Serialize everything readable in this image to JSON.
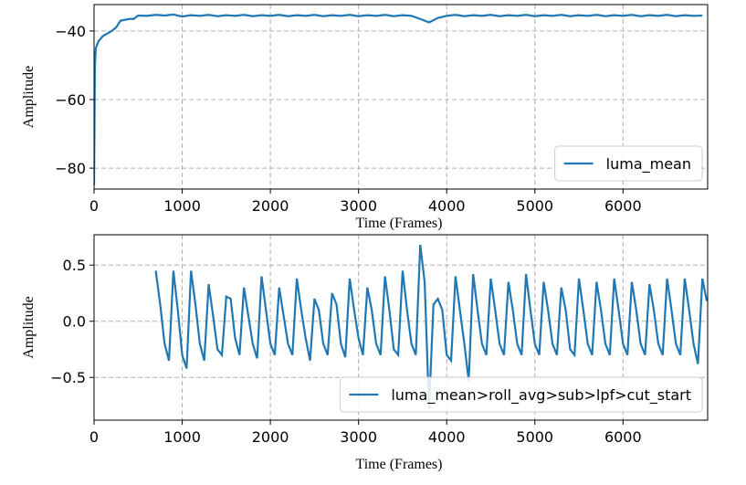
{
  "chart_data": [
    {
      "type": "line",
      "xlabel": "Time (Frames)",
      "ylabel": "Amplitude",
      "legend": "lower right",
      "grid": true,
      "x": [
        0,
        10,
        20,
        50,
        100,
        200,
        250,
        300,
        400,
        450,
        500,
        600,
        700,
        800,
        900,
        1000,
        1100,
        1200,
        1300,
        1400,
        1500,
        1600,
        1700,
        1800,
        1900,
        2000,
        2100,
        2200,
        2300,
        2400,
        2500,
        2600,
        2700,
        2800,
        2900,
        3000,
        3100,
        3200,
        3300,
        3400,
        3500,
        3600,
        3700,
        3800,
        3900,
        4000,
        4100,
        4200,
        4300,
        4400,
        4500,
        4600,
        4700,
        4800,
        4900,
        5000,
        5100,
        5200,
        5300,
        5400,
        5500,
        5600,
        5700,
        5800,
        5900,
        6000,
        6100,
        6200,
        6300,
        6400,
        6500,
        6600,
        6700,
        6800,
        6900
      ],
      "series": [
        {
          "name": "luma_mean",
          "color": "#1f77b4",
          "values": [
            -85,
            -50,
            -45,
            -43,
            -41.5,
            -40,
            -39,
            -37,
            -36.5,
            -36.5,
            -35.5,
            -35.6,
            -35.3,
            -35.5,
            -35.2,
            -35.8,
            -35.4,
            -35.6,
            -35.3,
            -35.7,
            -35.4,
            -35.6,
            -35.3,
            -35.7,
            -35.4,
            -35.6,
            -35.3,
            -35.7,
            -35.4,
            -35.6,
            -35.3,
            -35.7,
            -35.4,
            -35.6,
            -35.3,
            -35.7,
            -35.4,
            -35.6,
            -35.3,
            -35.7,
            -35.4,
            -35.6,
            -36.5,
            -37.5,
            -36.2,
            -35.6,
            -35.3,
            -35.7,
            -35.4,
            -35.6,
            -35.3,
            -35.7,
            -35.4,
            -35.6,
            -35.3,
            -35.7,
            -35.4,
            -35.6,
            -35.3,
            -35.7,
            -35.4,
            -35.6,
            -35.3,
            -35.7,
            -35.4,
            -35.6,
            -35.3,
            -35.7,
            -35.4,
            -35.6,
            -35.3,
            -35.7,
            -35.4,
            -35.6,
            -35.5
          ]
        }
      ],
      "xlim": [
        0,
        6960
      ],
      "xticks": [
        0,
        1000,
        2000,
        3000,
        4000,
        5000,
        6000
      ],
      "ylim": [
        -86.1,
        -32.3
      ],
      "yticks": [
        {
          "value": -40,
          "label": "−40"
        },
        {
          "value": -60,
          "label": "−60"
        },
        {
          "value": -80,
          "label": "−80"
        }
      ]
    },
    {
      "type": "line",
      "xlabel": "Time (Frames)",
      "ylabel": "Amplitude",
      "legend": "lower right",
      "grid": true,
      "x": [
        700,
        750,
        800,
        850,
        900,
        950,
        1000,
        1050,
        1100,
        1150,
        1200,
        1250,
        1300,
        1350,
        1400,
        1450,
        1500,
        1550,
        1600,
        1650,
        1700,
        1750,
        1800,
        1850,
        1900,
        1950,
        2000,
        2050,
        2100,
        2150,
        2200,
        2250,
        2300,
        2350,
        2400,
        2450,
        2500,
        2550,
        2600,
        2650,
        2700,
        2750,
        2800,
        2850,
        2900,
        2950,
        3000,
        3050,
        3100,
        3150,
        3200,
        3250,
        3300,
        3350,
        3400,
        3450,
        3500,
        3550,
        3600,
        3650,
        3700,
        3750,
        3800,
        3850,
        3900,
        3950,
        4000,
        4050,
        4100,
        4150,
        4200,
        4250,
        4300,
        4350,
        4400,
        4450,
        4500,
        4550,
        4600,
        4650,
        4700,
        4750,
        4800,
        4850,
        4900,
        4950,
        5000,
        5050,
        5100,
        5150,
        5200,
        5250,
        5300,
        5350,
        5400,
        5450,
        5500,
        5550,
        5600,
        5650,
        5700,
        5750,
        5800,
        5850,
        5900,
        5950,
        6000,
        6050,
        6100,
        6150,
        6200,
        6250,
        6300,
        6350,
        6400,
        6450,
        6500,
        6550,
        6600,
        6650,
        6700,
        6750,
        6800,
        6850,
        6900,
        6950
      ],
      "series": [
        {
          "name": "luma_mean>roll_avg>sub>lpf>cut_start",
          "color": "#1f77b4",
          "values": [
            0.45,
            0.15,
            -0.2,
            -0.35,
            0.45,
            0.1,
            -0.3,
            -0.42,
            0.45,
            0.15,
            -0.2,
            -0.35,
            0.33,
            0.05,
            -0.25,
            -0.3,
            0.22,
            0.2,
            -0.15,
            -0.3,
            0.3,
            0.05,
            -0.2,
            -0.33,
            0.4,
            0.1,
            -0.2,
            -0.3,
            0.3,
            0.05,
            -0.2,
            -0.3,
            0.38,
            0.1,
            -0.15,
            -0.35,
            0.2,
            0.1,
            -0.2,
            -0.3,
            0.25,
            0.15,
            -0.2,
            -0.32,
            0.38,
            0.1,
            -0.15,
            -0.3,
            0.3,
            0.1,
            -0.2,
            -0.3,
            0.4,
            0.1,
            -0.25,
            -0.3,
            0.45,
            0.1,
            -0.2,
            -0.3,
            0.68,
            0.35,
            -0.78,
            0.15,
            0.2,
            0.1,
            -0.3,
            -0.35,
            0.4,
            0.1,
            -0.2,
            -0.53,
            0.42,
            0.1,
            -0.2,
            -0.3,
            0.38,
            0.1,
            -0.2,
            -0.3,
            0.35,
            0.1,
            -0.2,
            -0.3,
            0.42,
            0.1,
            -0.2,
            -0.3,
            0.35,
            0.1,
            -0.2,
            -0.3,
            0.3,
            0.1,
            -0.25,
            -0.3,
            0.38,
            0.1,
            -0.2,
            -0.3,
            0.35,
            0.1,
            -0.2,
            -0.3,
            0.38,
            0.1,
            -0.2,
            -0.3,
            0.35,
            0.1,
            -0.2,
            -0.3,
            0.33,
            0.1,
            -0.2,
            -0.3,
            0.38,
            0.1,
            -0.2,
            -0.3,
            0.38,
            0.1,
            -0.2,
            -0.38,
            0.38,
            0.18
          ]
        }
      ],
      "xlim": [
        0,
        6960
      ],
      "xticks": [
        0,
        1000,
        2000,
        3000,
        4000,
        5000,
        6000
      ],
      "ylim": [
        -0.88,
        0.77
      ],
      "yticks": [
        0.5,
        {
          "value": 0,
          "label": "0.0"
        },
        {
          "value": -0.5,
          "label": "−0.5"
        }
      ]
    }
  ]
}
